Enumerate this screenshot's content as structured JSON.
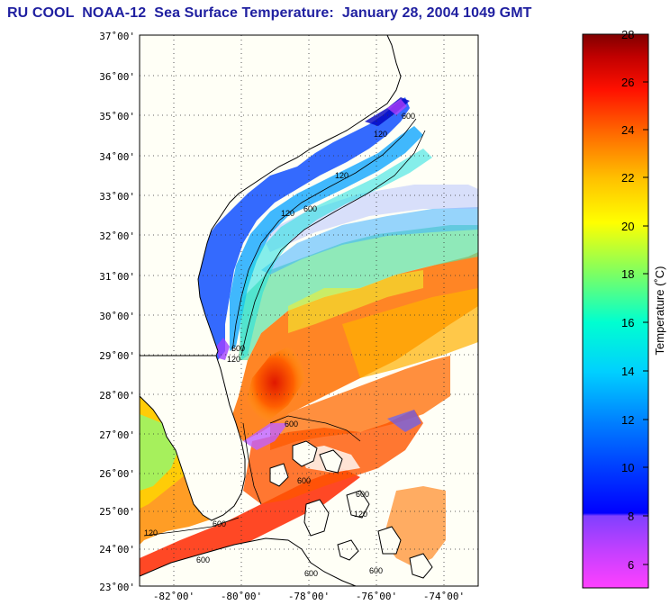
{
  "title": "RU COOL  NOAA-12  Sea Surface Temperature:  January 28, 2004 1049 GMT",
  "map": {
    "lat_labels": [
      "23˚00'",
      "24˚00'",
      "25˚00'",
      "26˚00'",
      "27˚00'",
      "28˚00'",
      "29˚00'",
      "30˚00'",
      "31˚00'",
      "32˚00'",
      "33˚00'",
      "34˚00'",
      "35˚00'",
      "36˚00'",
      "37˚00'"
    ],
    "lon_labels": [
      "-82˚00'",
      "-80˚00'",
      "-78˚00'",
      "-76˚00'",
      "-74˚00'"
    ],
    "lat_range": [
      23,
      37
    ],
    "lon_range": [
      -83,
      -73
    ],
    "grid": true,
    "isobath_labels": [
      "600",
      "120",
      "120",
      "600",
      "120",
      "600",
      "600",
      "120",
      "600",
      "120",
      "600",
      "600",
      "120",
      "600",
      "600",
      "600"
    ]
  },
  "colorbar": {
    "label": "Temperature (˚C)",
    "ticks": [
      "6",
      "8",
      "10",
      "12",
      "14",
      "16",
      "18",
      "20",
      "22",
      "24",
      "26",
      "28"
    ],
    "range": [
      5,
      28
    ],
    "colors": [
      "#ff40ff",
      "#c040ff",
      "#8040ff",
      "#0000ff",
      "#0080ff",
      "#00c0ff",
      "#00ffff",
      "#40ffc0",
      "#80ff80",
      "#ffff00",
      "#ffc000",
      "#ff8000",
      "#ff2000",
      "#c00000",
      "#800000"
    ]
  }
}
